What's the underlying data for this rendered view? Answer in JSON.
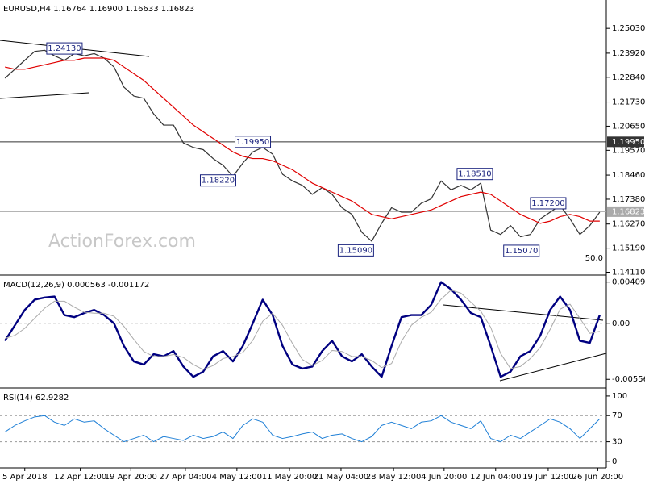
{
  "watermark": "ActionForex.com",
  "chart_data": [
    {
      "type": "line",
      "title": "EURUSD,H4  1.16764 1.16900 1.16633 1.16823",
      "level_note": "50.0",
      "xlim": [
        -0.5,
        60.5
      ],
      "ylim": [
        1.1402,
        1.263
      ],
      "yticks": [
        {
          "value": 1.2503,
          "label": "1.25030"
        },
        {
          "value": 1.2392,
          "label": "1.23920"
        },
        {
          "value": 1.2284,
          "label": "1.22840"
        },
        {
          "value": 1.2173,
          "label": "1.21730"
        },
        {
          "value": 1.2065,
          "label": "1.20650"
        },
        {
          "value": 1.1957,
          "label": "1.19570"
        },
        {
          "value": 1.1846,
          "label": "1.18460"
        },
        {
          "value": 1.1738,
          "label": "1.17380"
        },
        {
          "value": 1.1627,
          "label": "1.16270"
        },
        {
          "value": 1.1519,
          "label": "1.15190"
        },
        {
          "value": 1.1411,
          "label": "1.14110"
        }
      ],
      "hlines": [
        {
          "value": 1.1995,
          "label": "1.19950",
          "color": "#333333"
        },
        {
          "value": 1.16823,
          "label": "1.16823",
          "color": "#aaaaaa"
        }
      ],
      "annotations": [
        {
          "value": 1.2413,
          "label": "1.24130",
          "x": 6
        },
        {
          "value": 1.1995,
          "label": "1.19950",
          "x": 25
        },
        {
          "value": 1.1822,
          "label": "1.18220",
          "x": 21.5
        },
        {
          "value": 1.1851,
          "label": "1.18510",
          "x": 47.4
        },
        {
          "value": 1.172,
          "label": "1.17200",
          "x": 54.8
        },
        {
          "value": 1.1509,
          "label": "1.15090",
          "x": 35.4
        },
        {
          "value": 1.1507,
          "label": "1.15070",
          "x": 52.1
        }
      ],
      "series": [
        {
          "color": "#333333",
          "width": 1.2,
          "values": [
            1.228,
            1.232,
            1.236,
            1.24,
            1.2405,
            1.238,
            1.236,
            1.239,
            1.238,
            1.239,
            1.237,
            1.233,
            1.224,
            1.22,
            1.219,
            1.212,
            1.207,
            1.207,
            1.199,
            1.197,
            1.196,
            1.192,
            1.189,
            1.184,
            1.19,
            1.195,
            1.197,
            1.194,
            1.185,
            1.182,
            1.18,
            1.176,
            1.179,
            1.176,
            1.17,
            1.167,
            1.159,
            1.155,
            1.163,
            1.17,
            1.168,
            1.168,
            1.172,
            1.174,
            1.182,
            1.178,
            1.18,
            1.178,
            1.181,
            1.16,
            1.158,
            1.162,
            1.157,
            1.158,
            1.165,
            1.168,
            1.171,
            1.165,
            1.158,
            1.162,
            1.168
          ]
        },
        {
          "color": "#e00000",
          "width": 1.2,
          "values": [
            1.233,
            1.232,
            1.232,
            1.233,
            1.234,
            1.235,
            1.236,
            1.236,
            1.237,
            1.237,
            1.237,
            1.236,
            1.233,
            1.23,
            1.227,
            1.223,
            1.219,
            1.215,
            1.211,
            1.207,
            1.204,
            1.201,
            1.198,
            1.195,
            1.193,
            1.192,
            1.192,
            1.191,
            1.189,
            1.187,
            1.184,
            1.181,
            1.179,
            1.177,
            1.175,
            1.173,
            1.17,
            1.167,
            1.166,
            1.165,
            1.166,
            1.167,
            1.168,
            1.169,
            1.171,
            1.173,
            1.175,
            1.176,
            1.177,
            1.176,
            1.173,
            1.17,
            1.167,
            1.165,
            1.163,
            1.164,
            1.166,
            1.167,
            1.166,
            1.164,
            1.164
          ]
        }
      ]
    },
    {
      "type": "line",
      "title": "MACD(12,26,9) 0.000563 -0.001172",
      "xlim": [
        -0.5,
        60.5
      ],
      "ylim": [
        -0.00635,
        0.00471
      ],
      "yticks": [
        0.004094,
        {
          "value": 0,
          "label": "0.00"
        },
        -0.005568
      ],
      "levels": [
        0
      ],
      "series": [
        {
          "color": "#000080",
          "width": 2.4,
          "values": [
            -0.00174,
            -0.0002,
            0.00133,
            0.00235,
            0.00256,
            0.00266,
            0.00082,
            0.00061,
            0.00102,
            0.00133,
            0.00082,
            0,
            -0.00225,
            -0.00379,
            -0.0041,
            -0.00307,
            -0.00328,
            -0.00276,
            -0.0043,
            -0.00532,
            -0.00481,
            -0.00328,
            -0.00276,
            -0.00379,
            -0.00225,
            0,
            0.00235,
            0.00082,
            -0.00225,
            -0.0041,
            -0.0045,
            -0.0043,
            -0.00276,
            -0.00174,
            -0.00328,
            -0.00379,
            -0.00307,
            -0.0043,
            -0.00532,
            -0.00225,
            0.00061,
            0.00082,
            0.00082,
            0.00184,
            0.0041,
            0.00338,
            0.00235,
            0.00102,
            0.00061,
            -0.00225,
            -0.00532,
            -0.00481,
            -0.00328,
            -0.00276,
            -0.00123,
            0.00133,
            0.00266,
            0.00133,
            -0.00174,
            -0.00195,
            0.00082
          ]
        },
        {
          "color": "#aaaaaa",
          "width": 1,
          "values": [
            -0.0015,
            -0.0012,
            -0.0005,
            0.0005,
            0.0015,
            0.0022,
            0.0022,
            0.0016,
            0.0011,
            0.001,
            0.001,
            0.0007,
            -0.0003,
            -0.0016,
            -0.0028,
            -0.0033,
            -0.0033,
            -0.0031,
            -0.0034,
            -0.0041,
            -0.0046,
            -0.0042,
            -0.0035,
            -0.0033,
            -0.0029,
            -0.0017,
            0.0002,
            0.001,
            -0.0002,
            -0.002,
            -0.0036,
            -0.0042,
            -0.0037,
            -0.0027,
            -0.0028,
            -0.0033,
            -0.0033,
            -0.0037,
            -0.0044,
            -0.004,
            -0.0018,
            -0.0002,
            0.0006,
            0.0011,
            0.0024,
            0.0033,
            0.003,
            0.0021,
            0.0012,
            -0.0004,
            -0.003,
            -0.0045,
            -0.0043,
            -0.0035,
            -0.0024,
            -0.0006,
            0.0014,
            0.0019,
            0.0005,
            -0.001,
            -0.0008
          ]
        }
      ]
    },
    {
      "type": "line",
      "title": "RSI(14) 62.9282",
      "xlim": [
        -0.5,
        60.5
      ],
      "ylim": [
        -10,
        111
      ],
      "yticks": [
        100,
        70,
        30,
        0
      ],
      "levels": [
        70,
        30
      ],
      "xticks": [
        {
          "value": 2,
          "label": "5 Apr 2018"
        },
        {
          "value": 7.6,
          "label": "12 Apr 12:00"
        },
        {
          "value": 12.7,
          "label": "19 Apr 20:00"
        },
        {
          "value": 18.2,
          "label": "27 Apr 04:00"
        },
        {
          "value": 23.4,
          "label": "4 May 12:00"
        },
        {
          "value": 28.7,
          "label": "11 May 20:00"
        },
        {
          "value": 33.9,
          "label": "21 May 04:00"
        },
        {
          "value": 39.2,
          "label": "28 May 12:00"
        },
        {
          "value": 44.3,
          "label": "4 Jun 20:00"
        },
        {
          "value": 49.5,
          "label": "12 Jun 04:00"
        },
        {
          "value": 54.8,
          "label": "19 Jun 12:00"
        },
        {
          "value": 59.8,
          "label": "26 Jun 20:00"
        }
      ],
      "series": [
        {
          "color": "#1e7fd6",
          "width": 1,
          "values": [
            45,
            55,
            62,
            68,
            70,
            60,
            55,
            65,
            60,
            62,
            50,
            40,
            30,
            35,
            40,
            30,
            38,
            35,
            32,
            40,
            35,
            38,
            45,
            35,
            55,
            65,
            60,
            40,
            35,
            38,
            42,
            45,
            35,
            40,
            42,
            35,
            30,
            38,
            55,
            60,
            55,
            50,
            60,
            62,
            70,
            60,
            55,
            50,
            62,
            35,
            30,
            40,
            35,
            45,
            55,
            65,
            60,
            50,
            35,
            50,
            65
          ]
        }
      ]
    }
  ]
}
